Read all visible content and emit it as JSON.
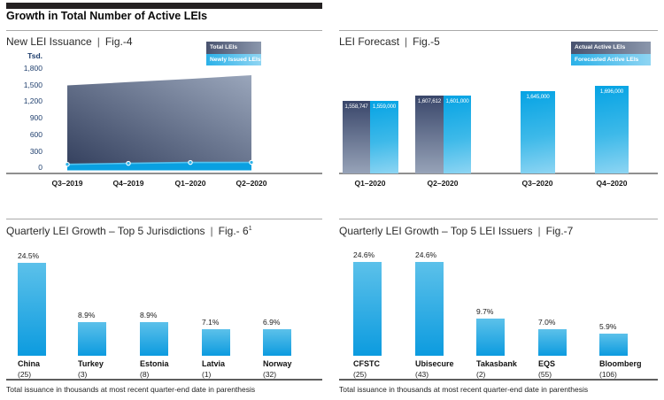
{
  "header": {
    "title": "Growth in Total Number of Active LEIs"
  },
  "ui": {
    "separator": "|",
    "footnote": "Total issuance in thousands at most recent quarter-end date in parenthesis"
  },
  "fig4": {
    "title": "New LEI Issuance",
    "fig_label": "Fig.-4",
    "legend": {
      "total": "Total LEIs",
      "newly": "Newly Issued LEIs"
    },
    "unit": "Tsd.",
    "yticks": [
      "1,800",
      "1,500",
      "1,200",
      "900",
      "600",
      "300",
      "0"
    ],
    "xlabels": [
      "Q3–2019",
      "Q4–2019",
      "Q1–2020",
      "Q2–2020"
    ]
  },
  "fig5": {
    "title": "LEI Forecast",
    "fig_label": "Fig.-5",
    "legend": {
      "actual": "Actual Active LEIs",
      "forecast": "Forecasted Active LEIs"
    },
    "xlabels": [
      "Q1–2020",
      "Q2–2020",
      "Q3–2020",
      "Q4–2020"
    ]
  },
  "fig6": {
    "title": "Quarterly LEI Growth – Top 5 Jurisdictions",
    "fig_label": "Fig.- 6",
    "fig_sup": "1"
  },
  "fig7": {
    "title": "Quarterly LEI Growth – Top 5 LEI Issuers",
    "fig_label": "Fig.-7"
  },
  "chart_data": [
    {
      "id": "fig4",
      "type": "area",
      "title": "New LEI Issuance (Fig.-4)",
      "ylabel": "Tsd.",
      "ylim": [
        0,
        1800
      ],
      "yticks": [
        0,
        300,
        600,
        900,
        1200,
        1500,
        1800
      ],
      "x": [
        "Q3-2019",
        "Q4-2019",
        "Q1-2020",
        "Q2-2020"
      ],
      "series": [
        {
          "name": "Total LEIs",
          "values": [
            1470,
            1530,
            1590,
            1655
          ]
        },
        {
          "name": "Newly Issued LEIs",
          "values": [
            37,
            55,
            70,
            72
          ]
        }
      ],
      "legend_position": "top-right",
      "grid": false
    },
    {
      "id": "fig5",
      "type": "bar",
      "title": "LEI Forecast (Fig.-5)",
      "categories": [
        "Q1-2020",
        "Q2-2020",
        "Q3-2020",
        "Q4-2020"
      ],
      "series": [
        {
          "name": "Actual Active LEIs",
          "values": [
            1558747,
            1607612,
            null,
            null
          ],
          "labels": [
            "1,558,747",
            "1,607,612",
            null,
            null
          ]
        },
        {
          "name": "Forecasted Active LEIs",
          "values": [
            1559000,
            1601000,
            1645000,
            1696000
          ],
          "labels": [
            "1,559,000",
            "1,601,000",
            "1,645,000",
            "1,696,000"
          ]
        }
      ],
      "legend_position": "top-right",
      "grid": false
    },
    {
      "id": "fig6",
      "type": "bar",
      "title": "Quarterly LEI Growth – Top 5 Jurisdictions (Fig.-6)",
      "categories": [
        "China",
        "Turkey",
        "Estonia",
        "Latvia",
        "Norway"
      ],
      "counts": [
        "(25)",
        "(3)",
        "(8)",
        "(1)",
        "(32)"
      ],
      "values": [
        24.5,
        8.9,
        8.9,
        7.1,
        6.9
      ],
      "value_labels": [
        "24.5%",
        "8.9%",
        "8.9%",
        "7.1%",
        "6.9%"
      ],
      "ylim": [
        0,
        25
      ],
      "grid": false
    },
    {
      "id": "fig7",
      "type": "bar",
      "title": "Quarterly LEI Growth – Top 5 LEI Issuers (Fig.-7)",
      "categories": [
        "CFSTC",
        "Ubisecure",
        "Takasbank",
        "EQS",
        "Bloomberg"
      ],
      "counts": [
        "(25)",
        "(43)",
        "(2)",
        "(55)",
        "(106)"
      ],
      "values": [
        24.6,
        24.6,
        9.7,
        7.0,
        5.9
      ],
      "value_labels": [
        "24.6%",
        "24.6%",
        "9.7%",
        "7.0%",
        "5.9%"
      ],
      "ylim": [
        0,
        25
      ],
      "grid": false
    }
  ],
  "colors": {
    "accent_blue": "#29abe2",
    "bar_blue_top": "#5cc1ea",
    "bar_blue_bottom": "#0c9bdf",
    "navy_dark": "#39466a",
    "navy_light": "#98a4b9",
    "tick_text": "#1e3e6d",
    "rule_gray": "#aaaaaa",
    "header_bar": "#242122"
  }
}
